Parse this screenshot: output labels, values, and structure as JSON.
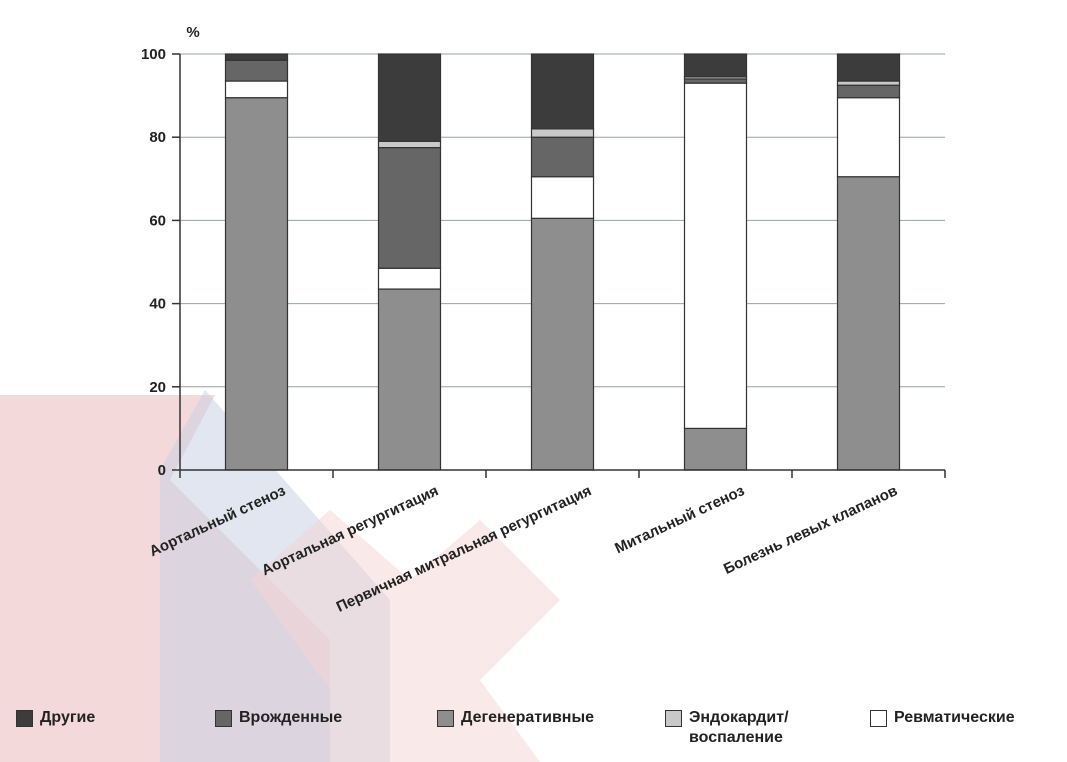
{
  "chart_data": {
    "type": "bar",
    "stacked": true,
    "title": "",
    "xlabel": "",
    "ylabel": "%",
    "ylim": [
      0,
      100
    ],
    "yticks": [
      "0",
      "20",
      "40",
      "60",
      "80",
      "100"
    ],
    "grid": true,
    "legend_position": "bottom",
    "categories": [
      "Аортальный стеноз",
      "Аортальная регургитация",
      "Первичная митральная регургитация",
      "Митальный стеноз",
      "Болезнь левых клапанов"
    ],
    "series": [
      {
        "name": "Дегенеративные",
        "color": "#8e8e8e",
        "values": [
          89.5,
          43.5,
          60.5,
          10.0,
          70.5
        ]
      },
      {
        "name": "Ревматические",
        "color": "#ffffff",
        "values": [
          4.0,
          5.0,
          10.0,
          83.0,
          19.0
        ]
      },
      {
        "name": "Врожденные",
        "color": "#666666",
        "values": [
          5.0,
          29.0,
          9.5,
          1.0,
          3.0
        ]
      },
      {
        "name": "Эндокардит/\nвоспаление",
        "color": "#c8c8c8",
        "values": [
          0.0,
          1.5,
          2.0,
          0.5,
          1.0
        ]
      },
      {
        "name": "Другие",
        "color": "#3c3c3c",
        "values": [
          1.5,
          21.0,
          18.0,
          5.5,
          6.5
        ]
      }
    ],
    "legend_order": [
      "Другие",
      "Врожденные",
      "Дегенеративные",
      "Эндокардит/\nвоспаление",
      "Ревматические"
    ]
  }
}
